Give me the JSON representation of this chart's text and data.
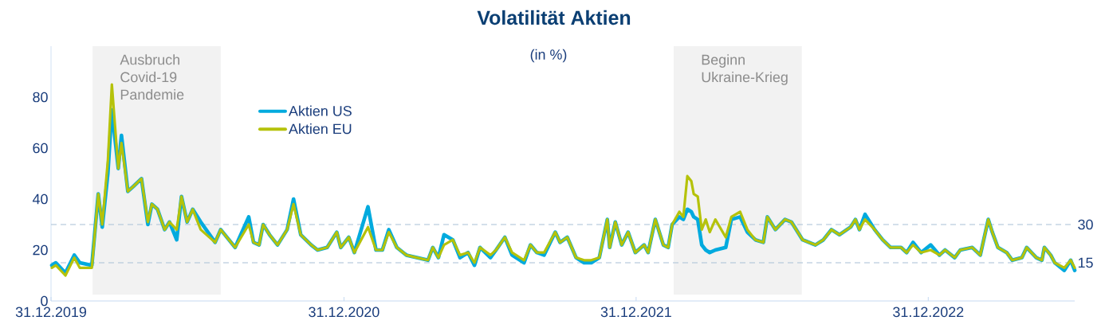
{
  "chart_data": {
    "type": "line",
    "title": "Volatilität Aktien",
    "subtitle": "(in %)",
    "x": [
      "2020-01-01",
      "2020-01-06",
      "2020-01-18",
      "2020-01-29",
      "2020-02-05",
      "2020-02-20",
      "2020-02-28",
      "2020-03-04",
      "2020-03-11",
      "2020-03-16",
      "2020-03-24",
      "2020-03-28",
      "2020-04-05",
      "2020-04-12",
      "2020-04-22",
      "2020-04-30",
      "2020-05-05",
      "2020-05-12",
      "2020-05-21",
      "2020-05-27",
      "2020-06-05",
      "2020-06-11",
      "2020-06-18",
      "2020-06-25",
      "2020-07-05",
      "2020-07-23",
      "2020-07-30",
      "2020-08-17",
      "2020-09-03",
      "2020-09-09",
      "2020-09-16",
      "2020-09-21",
      "2020-09-29",
      "2020-10-09",
      "2020-10-21",
      "2020-10-29",
      "2020-11-07",
      "2020-11-20",
      "2020-11-28",
      "2020-12-10",
      "2020-12-22",
      "2020-12-27",
      "2021-01-06",
      "2021-01-13",
      "2021-01-30",
      "2021-02-09",
      "2021-02-17",
      "2021-02-25",
      "2021-03-07",
      "2021-03-19",
      "2021-04-01",
      "2021-04-15",
      "2021-04-21",
      "2021-04-28",
      "2021-05-05",
      "2021-05-16",
      "2021-05-25",
      "2021-06-04",
      "2021-06-12",
      "2021-06-19",
      "2021-07-02",
      "2021-07-09",
      "2021-07-20",
      "2021-07-29",
      "2021-08-13",
      "2021-08-21",
      "2021-08-29",
      "2021-09-07",
      "2021-09-21",
      "2021-09-27",
      "2021-10-06",
      "2021-10-17",
      "2021-10-27",
      "2021-11-05",
      "2021-11-15",
      "2021-11-25",
      "2021-11-28",
      "2021-12-05",
      "2021-12-13",
      "2021-12-21",
      "2021-12-30",
      "2022-01-10",
      "2022-01-15",
      "2022-01-24",
      "2022-02-03",
      "2022-02-09",
      "2022-02-14",
      "2022-02-23",
      "2022-02-28",
      "2022-03-05",
      "2022-03-10",
      "2022-03-13",
      "2022-03-18",
      "2022-03-23",
      "2022-03-28",
      "2022-04-02",
      "2022-04-09",
      "2022-04-22",
      "2022-04-29",
      "2022-05-10",
      "2022-05-19",
      "2022-05-29",
      "2022-06-08",
      "2022-06-13",
      "2022-06-23",
      "2022-07-05",
      "2022-07-13",
      "2022-07-27",
      "2022-08-12",
      "2022-08-22",
      "2022-09-01",
      "2022-09-11",
      "2022-09-25",
      "2022-10-01",
      "2022-10-06",
      "2022-10-13",
      "2022-10-25",
      "2022-11-04",
      "2022-11-14",
      "2022-11-27",
      "2022-12-04",
      "2022-12-12",
      "2022-12-22",
      "2023-01-03",
      "2023-01-14",
      "2023-01-21",
      "2023-02-02",
      "2023-02-09",
      "2023-02-24",
      "2023-03-06",
      "2023-03-16",
      "2023-03-21",
      "2023-03-28",
      "2023-04-08",
      "2023-04-15",
      "2023-04-27",
      "2023-05-03",
      "2023-05-15",
      "2023-05-22",
      "2023-05-25",
      "2023-06-02",
      "2023-06-07",
      "2023-06-19",
      "2023-06-27",
      "2023-07-02"
    ],
    "series": [
      {
        "name": "Aktien US",
        "color": "#00aade",
        "values": [
          14,
          15,
          11,
          18,
          15,
          14,
          42,
          29,
          50,
          75,
          52,
          65,
          43,
          45,
          48,
          30,
          38,
          36,
          28,
          31,
          24,
          41,
          31,
          36,
          31,
          23,
          28,
          21,
          33,
          23,
          22,
          30,
          26,
          22,
          28,
          40,
          26,
          22,
          20,
          21,
          27,
          21,
          25,
          19,
          37,
          20,
          20,
          28,
          21,
          18,
          17,
          16,
          21,
          17,
          26,
          24,
          17,
          19,
          14,
          21,
          17,
          20,
          25,
          18,
          15,
          22,
          19,
          18,
          27,
          23,
          25,
          17,
          15,
          15,
          17,
          32,
          21,
          31,
          22,
          27,
          19,
          22,
          19,
          32,
          22,
          21,
          30,
          33,
          32,
          36,
          35,
          33,
          32,
          22,
          20,
          19,
          20,
          21,
          32,
          33,
          27,
          24,
          23,
          33,
          28,
          32,
          31,
          24,
          22,
          24,
          28,
          26,
          29,
          32,
          28,
          34,
          28,
          24,
          21,
          21,
          19,
          23,
          19,
          22,
          18,
          20,
          17,
          20,
          21,
          18,
          32,
          27,
          21,
          19,
          16,
          17,
          21,
          17,
          16,
          21,
          18,
          15,
          12,
          16,
          12
        ]
      },
      {
        "name": "Aktien EU",
        "color": "#b5c20a",
        "values": [
          13,
          14,
          10,
          17,
          13,
          13,
          42,
          30,
          55,
          85,
          52,
          62,
          43,
          45,
          48,
          31,
          38,
          36,
          28,
          31,
          28,
          41,
          31,
          36,
          28,
          23,
          28,
          21,
          30,
          23,
          22,
          30,
          26,
          22,
          28,
          38,
          26,
          22,
          20,
          21,
          27,
          21,
          25,
          19,
          29,
          20,
          20,
          27,
          21,
          18,
          17,
          16,
          21,
          17,
          22,
          24,
          18,
          19,
          15,
          21,
          18,
          20,
          25,
          19,
          16,
          22,
          19,
          19,
          27,
          23,
          25,
          17,
          16,
          16,
          17,
          32,
          21,
          31,
          22,
          27,
          19,
          22,
          19,
          32,
          22,
          21,
          30,
          35,
          33,
          49,
          47,
          42,
          41,
          28,
          32,
          27,
          32,
          25,
          33,
          35,
          28,
          24,
          23,
          33,
          28,
          32,
          31,
          24,
          22,
          24,
          28,
          26,
          29,
          32,
          28,
          32,
          28,
          24,
          21,
          21,
          19,
          22,
          19,
          20,
          18,
          20,
          17,
          20,
          21,
          18,
          32,
          27,
          21,
          19,
          16,
          17,
          21,
          17,
          16,
          21,
          18,
          15,
          13,
          16,
          13
        ]
      }
    ],
    "xlim": [
      "2019-12-31",
      "2023-07-02"
    ],
    "xticks": [
      {
        "value": "2019-12-31",
        "label": "31.12.2019"
      },
      {
        "value": "2020-12-31",
        "label": "31.12.2020"
      },
      {
        "value": "2021-12-31",
        "label": "31.12.2021"
      },
      {
        "value": "2022-12-31",
        "label": "31.12.2022"
      }
    ],
    "ylim": [
      0,
      100
    ],
    "yticks": [
      0,
      20,
      40,
      60,
      80
    ],
    "bands": [
      {
        "axis": "x",
        "from": "2020-02-21",
        "to": "2020-07-30",
        "label": "Ausbruch Covid-19 Pandemie",
        "color": "#f2f2f2"
      },
      {
        "axis": "x",
        "from": "2022-02-16",
        "to": "2022-07-26",
        "label": "Beginn Ukraine-Krieg",
        "color": "#f2f2f2"
      }
    ],
    "ref_lines": [
      {
        "axis": "y",
        "value": 30,
        "label": "30",
        "color": "#a7bfd6",
        "line_style": "dashed"
      },
      {
        "axis": "y",
        "value": 15,
        "label": "15",
        "color": "#a7bfd6",
        "line_style": "dashed"
      }
    ],
    "legend": "top left",
    "grid": false,
    "line_style": "solid",
    "marker": "none"
  }
}
